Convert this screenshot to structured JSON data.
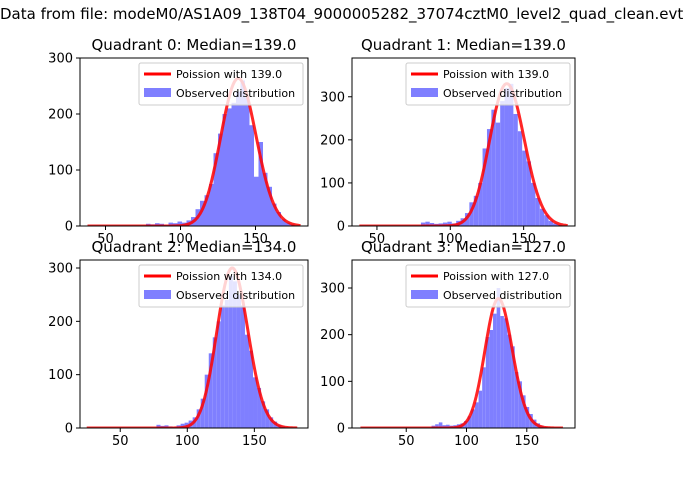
{
  "suptitle": "Data from file: modeM0/AS1A09_138T04_9000005282_37074cztM0_level2_quad_clean.evt",
  "colors": {
    "bar": "#7f7fff",
    "curve": "#ff0000",
    "axis": "#000000"
  },
  "chart_data": [
    {
      "type": "bar",
      "title": "Quadrant 0: Median=139.0",
      "xlim": [
        33,
        185
      ],
      "ylim": [
        0,
        300
      ],
      "xticks": [
        50,
        100,
        150
      ],
      "yticks": [
        0,
        100,
        200,
        300
      ],
      "legend_position": "upper-right",
      "poisson": {
        "label": "Poission with 139.0",
        "mean": 139.0,
        "x_range": [
          38,
          180
        ]
      },
      "observed": {
        "label": "Observed distribution",
        "bin_width": 3,
        "bins": [
          [
            77,
            4
          ],
          [
            80,
            3
          ],
          [
            83,
            5
          ],
          [
            86,
            4
          ],
          [
            89,
            2
          ],
          [
            92,
            6
          ],
          [
            95,
            5
          ],
          [
            98,
            8
          ],
          [
            101,
            6
          ],
          [
            104,
            10
          ],
          [
            107,
            16
          ],
          [
            110,
            30
          ],
          [
            113,
            45
          ],
          [
            116,
            55
          ],
          [
            119,
            75
          ],
          [
            122,
            130
          ],
          [
            125,
            165
          ],
          [
            128,
            200
          ],
          [
            131,
            210
          ],
          [
            134,
            220
          ],
          [
            137,
            240
          ],
          [
            140,
            260
          ],
          [
            143,
            230
          ],
          [
            146,
            180
          ],
          [
            149,
            88
          ],
          [
            152,
            150
          ],
          [
            155,
            95
          ],
          [
            158,
            70
          ],
          [
            161,
            40
          ],
          [
            164,
            25
          ],
          [
            167,
            12
          ],
          [
            170,
            6
          ],
          [
            173,
            3
          ]
        ]
      }
    },
    {
      "type": "bar",
      "title": "Quadrant 1: Median=139.0",
      "xlim": [
        33,
        185
      ],
      "ylim": [
        0,
        390
      ],
      "xticks": [
        50,
        100,
        150
      ],
      "yticks": [
        0,
        100,
        200,
        300
      ],
      "legend_position": "upper-right",
      "poisson": {
        "label": "Poission with 139.0",
        "mean": 139.0,
        "x_range": [
          38,
          180
        ]
      },
      "observed": {
        "label": "Observed distribution",
        "bin_width": 3,
        "bins": [
          [
            80,
            8
          ],
          [
            83,
            10
          ],
          [
            86,
            7
          ],
          [
            89,
            5
          ],
          [
            92,
            6
          ],
          [
            95,
            8
          ],
          [
            98,
            10
          ],
          [
            101,
            6
          ],
          [
            104,
            12
          ],
          [
            107,
            18
          ],
          [
            110,
            30
          ],
          [
            113,
            55
          ],
          [
            116,
            70
          ],
          [
            119,
            100
          ],
          [
            122,
            180
          ],
          [
            125,
            225
          ],
          [
            128,
            270
          ],
          [
            131,
            240
          ],
          [
            134,
            290
          ],
          [
            137,
            320
          ],
          [
            140,
            330
          ],
          [
            143,
            260
          ],
          [
            146,
            220
          ],
          [
            149,
            175
          ],
          [
            152,
            150
          ],
          [
            155,
            100
          ],
          [
            158,
            65
          ],
          [
            161,
            40
          ],
          [
            164,
            25
          ],
          [
            167,
            12
          ],
          [
            170,
            6
          ],
          [
            173,
            3
          ]
        ]
      }
    },
    {
      "type": "bar",
      "title": "Quadrant 2: Median=134.0",
      "xlim": [
        20,
        190
      ],
      "ylim": [
        0,
        315
      ],
      "xticks": [
        50,
        100,
        150
      ],
      "yticks": [
        0,
        100,
        200,
        300
      ],
      "legend_position": "upper-right",
      "poisson": {
        "label": "Poission with 134.0",
        "mean": 134.0,
        "x_range": [
          25,
          182
        ]
      },
      "observed": {
        "label": "Observed distribution",
        "bin_width": 3,
        "bins": [
          [
            77,
            6
          ],
          [
            80,
            4
          ],
          [
            83,
            5
          ],
          [
            86,
            3
          ],
          [
            89,
            2
          ],
          [
            92,
            5
          ],
          [
            95,
            8
          ],
          [
            98,
            10
          ],
          [
            101,
            14
          ],
          [
            104,
            20
          ],
          [
            107,
            35
          ],
          [
            110,
            55
          ],
          [
            113,
            100
          ],
          [
            116,
            140
          ],
          [
            119,
            170
          ],
          [
            122,
            200
          ],
          [
            125,
            230
          ],
          [
            128,
            240
          ],
          [
            131,
            285
          ],
          [
            134,
            275
          ],
          [
            137,
            250
          ],
          [
            140,
            230
          ],
          [
            143,
            175
          ],
          [
            146,
            145
          ],
          [
            149,
            95
          ],
          [
            152,
            75
          ],
          [
            155,
            50
          ],
          [
            158,
            35
          ],
          [
            161,
            20
          ],
          [
            164,
            12
          ],
          [
            167,
            6
          ],
          [
            170,
            3
          ]
        ]
      }
    },
    {
      "type": "bar",
      "title": "Quadrant 3: Median=127.0",
      "xlim": [
        5,
        190
      ],
      "ylim": [
        0,
        360
      ],
      "xticks": [
        50,
        100,
        150
      ],
      "yticks": [
        0,
        100,
        200,
        300
      ],
      "legend_position": "upper-right",
      "poisson": {
        "label": "Poission with 127.0",
        "mean": 127.0,
        "x_range": [
          12,
          180
        ]
      },
      "observed": {
        "label": "Observed distribution",
        "bin_width": 3,
        "bins": [
          [
            71,
            5
          ],
          [
            74,
            8
          ],
          [
            77,
            12
          ],
          [
            80,
            6
          ],
          [
            83,
            7
          ],
          [
            86,
            5
          ],
          [
            89,
            6
          ],
          [
            92,
            8
          ],
          [
            95,
            10
          ],
          [
            98,
            15
          ],
          [
            101,
            25
          ],
          [
            104,
            40
          ],
          [
            107,
            55
          ],
          [
            110,
            80
          ],
          [
            113,
            130
          ],
          [
            116,
            195
          ],
          [
            119,
            210
          ],
          [
            122,
            245
          ],
          [
            125,
            300
          ],
          [
            128,
            240
          ],
          [
            131,
            235
          ],
          [
            134,
            200
          ],
          [
            137,
            175
          ],
          [
            140,
            120
          ],
          [
            143,
            100
          ],
          [
            146,
            70
          ],
          [
            149,
            45
          ],
          [
            152,
            30
          ],
          [
            155,
            18
          ],
          [
            158,
            10
          ],
          [
            161,
            5
          ],
          [
            164,
            2
          ]
        ]
      }
    }
  ]
}
